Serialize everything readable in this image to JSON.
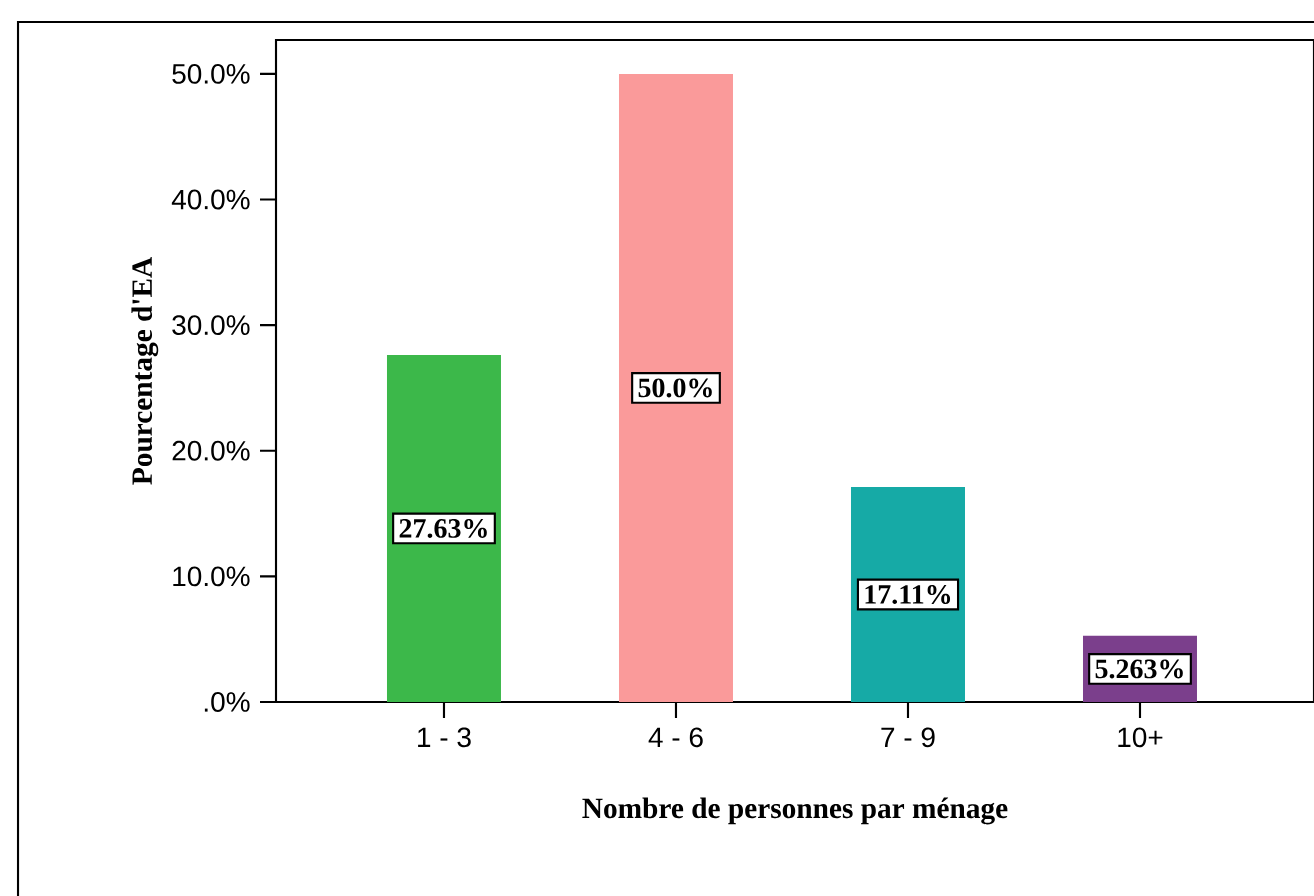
{
  "chart_data": {
    "type": "bar",
    "xlabel": "Nombre de personnes par ménage",
    "ylabel": "Pourcentage d'EA",
    "categories": [
      "1 - 3",
      "4 - 6",
      "7 - 9",
      "10+"
    ],
    "values": [
      27.63,
      50.0,
      17.11,
      5.263
    ],
    "value_labels": [
      "27.63%",
      "50.0%",
      "17.11%",
      "5.263%"
    ],
    "colors": [
      "#3cb84a",
      "#fa9a9a",
      "#16aaa6",
      "#7b3f8c"
    ],
    "ylim": [
      0,
      52.7
    ],
    "yticks": [
      {
        "value": 0,
        "label": ".0%"
      },
      {
        "value": 10,
        "label": "10.0%"
      },
      {
        "value": 20,
        "label": "20.0%"
      },
      {
        "value": 30,
        "label": "30.0%"
      },
      {
        "value": 40,
        "label": "40.0%"
      },
      {
        "value": 50,
        "label": "50.0%"
      }
    ],
    "grid": false
  }
}
